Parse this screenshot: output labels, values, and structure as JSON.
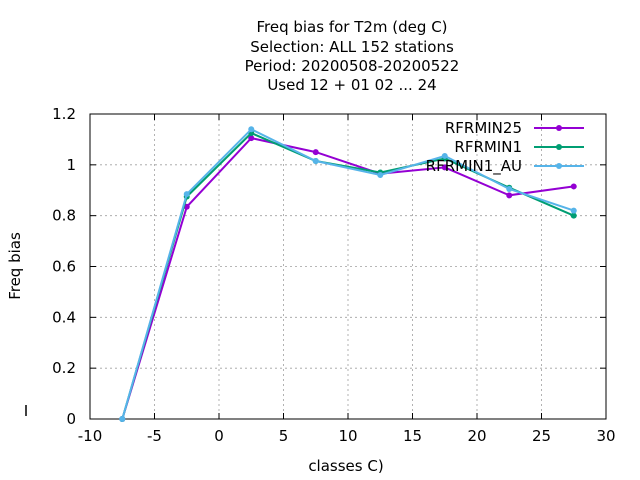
{
  "chart_data": {
    "type": "line",
    "title_lines": [
      "Freq bias  for T2m (deg C)",
      "Selection: ALL    152 stations",
      "Period: 20200508-20200522",
      "Used  12 + 01 02 ... 24"
    ],
    "xlabel": "classes C)",
    "ylabel": "Freq bias",
    "xlim": [
      -10,
      30
    ],
    "ylim": [
      0,
      1.2
    ],
    "xticks": [
      -10,
      -5,
      0,
      5,
      10,
      15,
      20,
      25,
      30
    ],
    "yticks": [
      0,
      0.2,
      0.4,
      0.6,
      0.8,
      1,
      1.2
    ],
    "grid": true,
    "legend_position": "top-right",
    "x": [
      -7.5,
      -2.5,
      2.5,
      7.5,
      12.5,
      17.5,
      22.5,
      27.5
    ],
    "series": [
      {
        "name": "RFRMIN25",
        "color": "#9400d3",
        "values": [
          0,
          0.835,
          1.105,
          1.05,
          0.965,
          0.99,
          0.88,
          0.915
        ]
      },
      {
        "name": "RFRMIN1",
        "color": "#009e73",
        "values": [
          0,
          0.875,
          1.125,
          1.015,
          0.97,
          1.025,
          0.91,
          0.8
        ]
      },
      {
        "name": "RFRMIN1_AU",
        "color": "#56b4e9",
        "values": [
          0,
          0.885,
          1.14,
          1.015,
          0.96,
          1.035,
          0.905,
          0.82
        ]
      }
    ]
  }
}
